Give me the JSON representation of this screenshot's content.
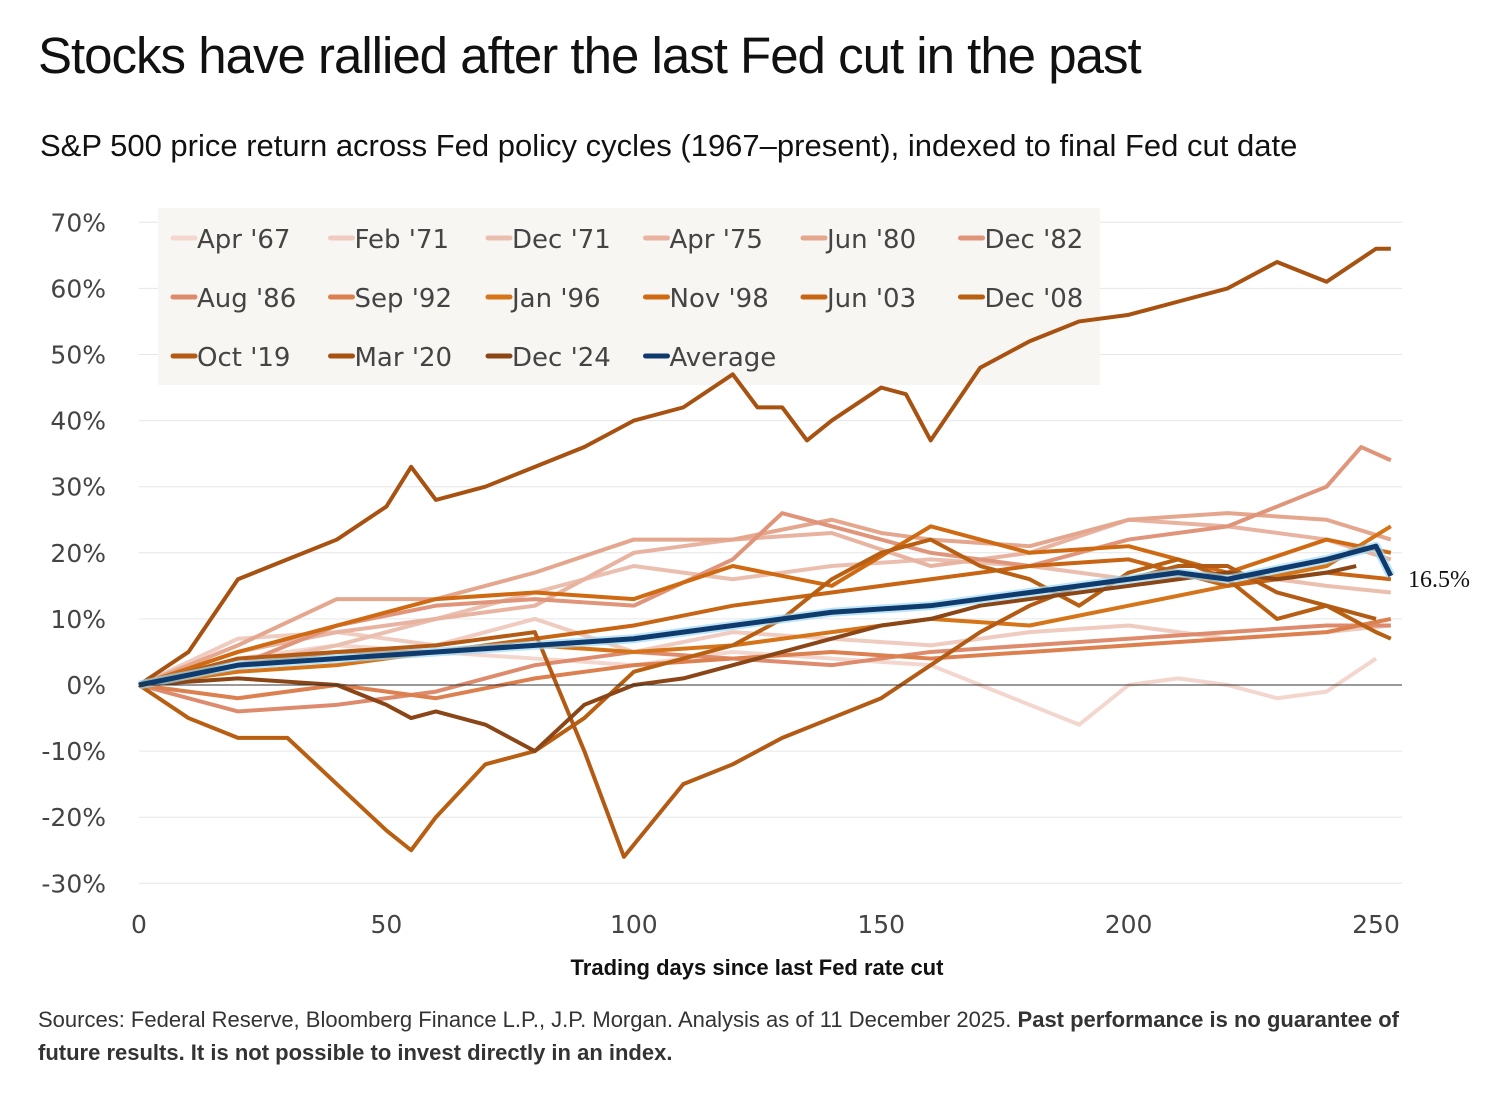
{
  "title": "Stocks have rallied after the last Fed cut in the past",
  "subtitle": "S&P 500 price return across Fed policy cycles (1967–present), indexed to final Fed cut date",
  "footer": {
    "sources": "Sources: Federal Reserve, Bloomberg Finance L.P., J.P. Morgan. Analysis as of 11 December 2025.",
    "disclaimer": "Past performance is no guarantee of future results. It is not possible to invest directly in an index."
  },
  "chart_data": {
    "type": "line",
    "xlabel": "Trading days since last Fed rate cut",
    "ylabel": "",
    "xlim": [
      0,
      253
    ],
    "ylim": [
      -30,
      70
    ],
    "xticks": [
      0,
      50,
      100,
      150,
      200,
      250
    ],
    "yticks": [
      -30,
      -20,
      -10,
      0,
      10,
      20,
      30,
      40,
      50,
      60,
      70
    ],
    "ytick_labels": [
      "-30%",
      "-20%",
      "-10%",
      "0%",
      "10%",
      "20%",
      "30%",
      "40%",
      "50%",
      "60%",
      "70%"
    ],
    "grid": true,
    "legend_position": "top-left",
    "end_label": "16.5%",
    "series": [
      {
        "name": "Apr '67",
        "color": "#f3d6cd",
        "points": [
          [
            0,
            0
          ],
          [
            20,
            4
          ],
          [
            40,
            6
          ],
          [
            60,
            5
          ],
          [
            80,
            4
          ],
          [
            100,
            3
          ],
          [
            120,
            5
          ],
          [
            140,
            4
          ],
          [
            160,
            3
          ],
          [
            170,
            0
          ],
          [
            180,
            -3
          ],
          [
            190,
            -6
          ],
          [
            200,
            0
          ],
          [
            210,
            1
          ],
          [
            220,
            0
          ],
          [
            230,
            -2
          ],
          [
            240,
            -1
          ],
          [
            250,
            4
          ]
        ]
      },
      {
        "name": "Feb '71",
        "color": "#efcbc0",
        "points": [
          [
            0,
            0
          ],
          [
            20,
            7
          ],
          [
            40,
            8
          ],
          [
            60,
            6
          ],
          [
            80,
            10
          ],
          [
            100,
            5
          ],
          [
            120,
            8
          ],
          [
            140,
            7
          ],
          [
            160,
            6
          ],
          [
            180,
            8
          ],
          [
            200,
            9
          ],
          [
            220,
            7
          ],
          [
            240,
            8
          ],
          [
            253,
            9
          ]
        ]
      },
      {
        "name": "Dec '71",
        "color": "#ebbfb0",
        "points": [
          [
            0,
            0
          ],
          [
            20,
            3
          ],
          [
            40,
            6
          ],
          [
            60,
            10
          ],
          [
            80,
            14
          ],
          [
            100,
            18
          ],
          [
            120,
            16
          ],
          [
            140,
            18
          ],
          [
            160,
            19
          ],
          [
            180,
            18
          ],
          [
            200,
            16
          ],
          [
            220,
            17
          ],
          [
            240,
            15
          ],
          [
            253,
            14
          ]
        ]
      },
      {
        "name": "Apr '75",
        "color": "#e8b3a0",
        "points": [
          [
            0,
            0
          ],
          [
            20,
            5
          ],
          [
            40,
            8
          ],
          [
            60,
            10
          ],
          [
            80,
            12
          ],
          [
            100,
            20
          ],
          [
            120,
            22
          ],
          [
            140,
            23
          ],
          [
            160,
            18
          ],
          [
            180,
            20
          ],
          [
            200,
            25
          ],
          [
            220,
            24
          ],
          [
            240,
            22
          ],
          [
            253,
            19
          ]
        ]
      },
      {
        "name": "Jun '80",
        "color": "#e5a68e",
        "points": [
          [
            0,
            0
          ],
          [
            20,
            6
          ],
          [
            40,
            13
          ],
          [
            60,
            13
          ],
          [
            80,
            17
          ],
          [
            100,
            22
          ],
          [
            120,
            22
          ],
          [
            140,
            25
          ],
          [
            150,
            23
          ],
          [
            160,
            22
          ],
          [
            180,
            21
          ],
          [
            200,
            25
          ],
          [
            220,
            26
          ],
          [
            240,
            25
          ],
          [
            253,
            22
          ]
        ]
      },
      {
        "name": "Dec '82",
        "color": "#e0957a",
        "points": [
          [
            0,
            0
          ],
          [
            20,
            3
          ],
          [
            40,
            9
          ],
          [
            60,
            12
          ],
          [
            80,
            13
          ],
          [
            100,
            12
          ],
          [
            120,
            19
          ],
          [
            130,
            26
          ],
          [
            140,
            24
          ],
          [
            160,
            20
          ],
          [
            180,
            18
          ],
          [
            200,
            22
          ],
          [
            220,
            24
          ],
          [
            240,
            30
          ],
          [
            247,
            36
          ],
          [
            253,
            34
          ]
        ]
      },
      {
        "name": "Aug '86",
        "color": "#dd8b6c",
        "points": [
          [
            0,
            0
          ],
          [
            20,
            -4
          ],
          [
            40,
            -3
          ],
          [
            60,
            -1
          ],
          [
            80,
            3
          ],
          [
            100,
            5
          ],
          [
            120,
            4
          ],
          [
            140,
            3
          ],
          [
            160,
            5
          ],
          [
            180,
            6
          ],
          [
            200,
            7
          ],
          [
            220,
            8
          ],
          [
            240,
            9
          ],
          [
            253,
            9
          ]
        ]
      },
      {
        "name": "Sep '92",
        "color": "#dc8050",
        "points": [
          [
            0,
            0
          ],
          [
            20,
            -2
          ],
          [
            40,
            0
          ],
          [
            60,
            -2
          ],
          [
            80,
            1
          ],
          [
            100,
            3
          ],
          [
            120,
            4
          ],
          [
            140,
            5
          ],
          [
            160,
            4
          ],
          [
            180,
            5
          ],
          [
            200,
            6
          ],
          [
            220,
            7
          ],
          [
            240,
            8
          ],
          [
            253,
            10
          ]
        ]
      },
      {
        "name": "Jan '96",
        "color": "#d67419",
        "points": [
          [
            0,
            0
          ],
          [
            20,
            2
          ],
          [
            40,
            3
          ],
          [
            60,
            5
          ],
          [
            80,
            6
          ],
          [
            100,
            5
          ],
          [
            120,
            6
          ],
          [
            140,
            8
          ],
          [
            160,
            10
          ],
          [
            180,
            9
          ],
          [
            200,
            12
          ],
          [
            220,
            15
          ],
          [
            240,
            18
          ],
          [
            253,
            24
          ]
        ]
      },
      {
        "name": "Nov '98",
        "color": "#cf6a12",
        "points": [
          [
            0,
            0
          ],
          [
            20,
            5
          ],
          [
            40,
            9
          ],
          [
            60,
            13
          ],
          [
            80,
            14
          ],
          [
            100,
            13
          ],
          [
            120,
            18
          ],
          [
            140,
            15
          ],
          [
            160,
            24
          ],
          [
            180,
            20
          ],
          [
            200,
            21
          ],
          [
            220,
            17
          ],
          [
            240,
            22
          ],
          [
            253,
            20
          ]
        ]
      },
      {
        "name": "Jun '03",
        "color": "#c86514",
        "points": [
          [
            0,
            0
          ],
          [
            20,
            3
          ],
          [
            40,
            5
          ],
          [
            60,
            5
          ],
          [
            80,
            7
          ],
          [
            100,
            9
          ],
          [
            120,
            12
          ],
          [
            140,
            14
          ],
          [
            160,
            16
          ],
          [
            180,
            18
          ],
          [
            200,
            19
          ],
          [
            220,
            15
          ],
          [
            240,
            17
          ],
          [
            253,
            16
          ]
        ]
      },
      {
        "name": "Dec '08",
        "color": "#b85f12",
        "points": [
          [
            0,
            0
          ],
          [
            10,
            -5
          ],
          [
            20,
            -8
          ],
          [
            30,
            -8
          ],
          [
            40,
            -15
          ],
          [
            50,
            -22
          ],
          [
            55,
            -25
          ],
          [
            60,
            -20
          ],
          [
            70,
            -12
          ],
          [
            80,
            -10
          ],
          [
            90,
            -5
          ],
          [
            100,
            2
          ],
          [
            110,
            4
          ],
          [
            120,
            6
          ],
          [
            130,
            10
          ],
          [
            140,
            16
          ],
          [
            150,
            20
          ],
          [
            160,
            22
          ],
          [
            170,
            18
          ],
          [
            180,
            16
          ],
          [
            190,
            12
          ],
          [
            200,
            17
          ],
          [
            210,
            19
          ],
          [
            220,
            16
          ],
          [
            230,
            10
          ],
          [
            240,
            12
          ],
          [
            250,
            8
          ],
          [
            253,
            7
          ]
        ]
      },
      {
        "name": "Oct '19",
        "color": "#b35b14",
        "points": [
          [
            0,
            0
          ],
          [
            20,
            4
          ],
          [
            40,
            5
          ],
          [
            60,
            6
          ],
          [
            80,
            8
          ],
          [
            90,
            -10
          ],
          [
            98,
            -26
          ],
          [
            110,
            -15
          ],
          [
            120,
            -12
          ],
          [
            130,
            -8
          ],
          [
            140,
            -5
          ],
          [
            150,
            -2
          ],
          [
            160,
            3
          ],
          [
            170,
            8
          ],
          [
            180,
            12
          ],
          [
            190,
            15
          ],
          [
            200,
            16
          ],
          [
            210,
            18
          ],
          [
            220,
            18
          ],
          [
            230,
            14
          ],
          [
            240,
            12
          ],
          [
            250,
            10
          ]
        ]
      },
      {
        "name": "Mar '20",
        "color": "#a85212",
        "points": [
          [
            0,
            0
          ],
          [
            10,
            5
          ],
          [
            20,
            16
          ],
          [
            30,
            19
          ],
          [
            40,
            22
          ],
          [
            50,
            27
          ],
          [
            55,
            33
          ],
          [
            60,
            28
          ],
          [
            70,
            30
          ],
          [
            80,
            33
          ],
          [
            90,
            36
          ],
          [
            100,
            40
          ],
          [
            110,
            42
          ],
          [
            120,
            47
          ],
          [
            125,
            42
          ],
          [
            130,
            42
          ],
          [
            135,
            37
          ],
          [
            140,
            40
          ],
          [
            150,
            45
          ],
          [
            155,
            44
          ],
          [
            160,
            37
          ],
          [
            170,
            48
          ],
          [
            180,
            52
          ],
          [
            190,
            55
          ],
          [
            200,
            56
          ],
          [
            210,
            58
          ],
          [
            220,
            60
          ],
          [
            230,
            64
          ],
          [
            240,
            61
          ],
          [
            250,
            66
          ],
          [
            253,
            66
          ]
        ]
      },
      {
        "name": "Dec '24",
        "color": "#8a4616",
        "points": [
          [
            0,
            0
          ],
          [
            20,
            1
          ],
          [
            40,
            0
          ],
          [
            50,
            -3
          ],
          [
            55,
            -5
          ],
          [
            60,
            -4
          ],
          [
            70,
            -6
          ],
          [
            80,
            -10
          ],
          [
            90,
            -3
          ],
          [
            100,
            0
          ],
          [
            110,
            1
          ],
          [
            120,
            3
          ],
          [
            130,
            5
          ],
          [
            140,
            7
          ],
          [
            150,
            9
          ],
          [
            160,
            10
          ],
          [
            170,
            12
          ],
          [
            180,
            13
          ],
          [
            190,
            14
          ],
          [
            200,
            15
          ],
          [
            210,
            16
          ],
          [
            220,
            17
          ],
          [
            230,
            16
          ],
          [
            240,
            17
          ],
          [
            246,
            18
          ]
        ]
      },
      {
        "name": "Average",
        "color": "#0f3a6e",
        "points": [
          [
            0,
            0
          ],
          [
            20,
            3
          ],
          [
            40,
            4
          ],
          [
            60,
            5
          ],
          [
            80,
            6
          ],
          [
            100,
            7
          ],
          [
            120,
            9
          ],
          [
            140,
            11
          ],
          [
            160,
            12
          ],
          [
            180,
            14
          ],
          [
            200,
            16
          ],
          [
            210,
            17
          ],
          [
            220,
            16
          ],
          [
            240,
            19
          ],
          [
            250,
            21
          ],
          [
            253,
            16.5
          ]
        ]
      }
    ]
  }
}
